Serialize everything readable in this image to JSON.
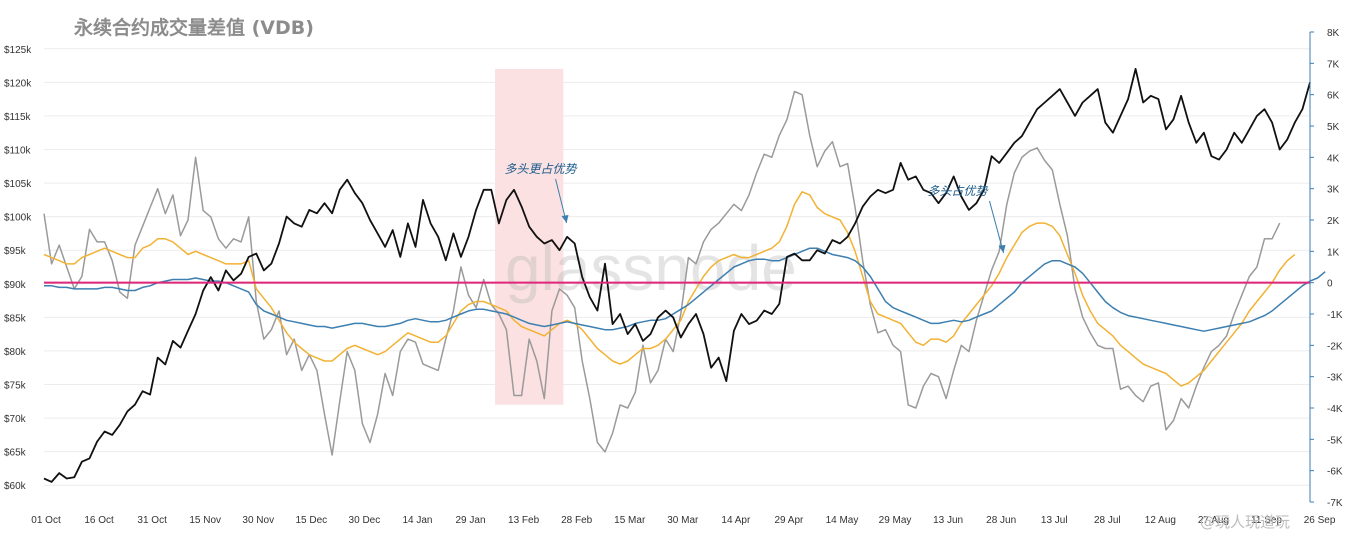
{
  "chart_data": {
    "type": "line",
    "title": "永续合约成交量差值 (VDB)",
    "x_ticks": [
      "01 Oct",
      "16 Oct",
      "31 Oct",
      "15 Nov",
      "30 Nov",
      "15 Dec",
      "30 Dec",
      "14 Jan",
      "29 Jan",
      "13 Feb",
      "28 Feb",
      "15 Mar",
      "30 Mar",
      "14 Apr",
      "29 Apr",
      "14 May",
      "29 May",
      "13 Jun",
      "28 Jun",
      "13 Jul",
      "28 Jul",
      "12 Aug",
      "27 Aug",
      "11 Sep",
      "26 Sep"
    ],
    "y_left_ticks": [
      "$60k",
      "$65k",
      "$70k",
      "$75k",
      "$80k",
      "$85k",
      "$90k",
      "$95k",
      "$100k",
      "$105k",
      "$110k",
      "$115k",
      "$120k",
      "$125k"
    ],
    "y_left_range": [
      57500,
      127500
    ],
    "y_right_ticks": [
      "-7K",
      "-6K",
      "-5K",
      "-4K",
      "-3K",
      "-2K",
      "-1K",
      "0",
      "1K",
      "2K",
      "3K",
      "4K",
      "5K",
      "6K",
      "7K",
      "8K"
    ],
    "y_right_range": [
      -7000,
      8000
    ],
    "grid": true,
    "colors": {
      "price": "#111111",
      "gray": "#9a9a9a",
      "orange": "#f2b233",
      "blue": "#3c7fb0",
      "zero": "#e0267a",
      "highlight": "#fbe1e1"
    },
    "highlight": {
      "x_start": 59.5,
      "x_end": 68.5,
      "y_top": 122000,
      "y_bottom": 72000
    },
    "annotations": [
      {
        "text": "多头更占优势",
        "x": 65.5,
        "y": 3500
      },
      {
        "text": "多头占优势",
        "x": 120.5,
        "y": 2800
      }
    ],
    "watermark": "glassnode",
    "credit": "@玩人玩道玩",
    "series": [
      {
        "name": "",
        "axis": "left",
        "color": "#111111",
        "values": [
          61000,
          60500,
          61800,
          61000,
          61200,
          63500,
          64000,
          66500,
          68000,
          67500,
          69000,
          71000,
          72000,
          74000,
          73500,
          79000,
          78000,
          81500,
          80500,
          83000,
          85500,
          89000,
          91000,
          89000,
          92000,
          90500,
          91500,
          94000,
          94500,
          92000,
          93000,
          96000,
          100000,
          99000,
          98500,
          101000,
          100500,
          102000,
          100500,
          104000,
          105500,
          103500,
          102000,
          99500,
          97500,
          95500,
          98000,
          94000,
          99000,
          95500,
          102500,
          99000,
          97000,
          93500,
          97500,
          94000,
          97000,
          101000,
          104000,
          104000,
          99000,
          102500,
          104000,
          101500,
          98500,
          97000,
          96000,
          96500,
          95000,
          97000,
          96000,
          91000,
          88000,
          86000,
          93000,
          84000,
          85500,
          82500,
          84000,
          81500,
          82500,
          85000,
          86000,
          85000,
          82000,
          84000,
          85500,
          82500,
          77500,
          79000,
          75500,
          83000,
          85500,
          84000,
          84500,
          86000,
          85500,
          87000,
          94000,
          94500,
          93500,
          93500,
          95000,
          94500,
          96500,
          96000,
          97000,
          99000,
          101500,
          103000,
          104000,
          103500,
          104000,
          108000,
          105500,
          106000,
          104000,
          103500,
          102000,
          103500,
          106000,
          103000,
          101000,
          102000,
          104000,
          109000,
          108000,
          109500,
          111000,
          112000,
          114000,
          116000,
          117000,
          118000,
          119000,
          117000,
          115000,
          117000,
          118000,
          119000,
          114000,
          112500,
          115000,
          117500,
          122000,
          117000,
          118000,
          117500,
          113000,
          114500,
          118000,
          114000,
          111000,
          112500,
          109000,
          108500,
          110000,
          112500,
          111000,
          113000,
          115000,
          116000,
          114000,
          110000,
          111500,
          114000,
          116000,
          120000
        ]
      },
      {
        "name": "",
        "axis": "right",
        "color": "#9a9a9a",
        "values": [
          2200,
          600,
          1200,
          500,
          -200,
          200,
          1700,
          1300,
          1300,
          700,
          -300,
          -500,
          1200,
          1800,
          2400,
          3000,
          2200,
          2800,
          1500,
          2000,
          4000,
          2300,
          2100,
          1400,
          1100,
          1400,
          1300,
          2100,
          -600,
          -1800,
          -1500,
          -900,
          -2300,
          -1800,
          -2800,
          -2300,
          -2800,
          -4200,
          -5500,
          -3800,
          -2200,
          -2800,
          -4500,
          -5100,
          -4200,
          -2900,
          -3600,
          -2200,
          -1800,
          -1900,
          -2600,
          -2700,
          -2800,
          -1800,
          -900,
          500,
          -400,
          -800,
          100,
          -700,
          -1000,
          -1500,
          -3600,
          -3600,
          -1800,
          -2500,
          -3700,
          -900,
          -200,
          -400,
          -800,
          -2500,
          -3700,
          -5100,
          -5400,
          -4800,
          -3900,
          -4000,
          -3500,
          -2000,
          -3200,
          -2800,
          -1800,
          -2200,
          -1000,
          800,
          600,
          1300,
          1700,
          1900,
          2200,
          2500,
          2300,
          2800,
          3500,
          4100,
          4000,
          4700,
          5200,
          6100,
          6000,
          4700,
          3700,
          4200,
          4500,
          3700,
          3800,
          2400,
          700,
          -700,
          -1600,
          -1500,
          -2000,
          -2200,
          -3900,
          -4000,
          -3300,
          -2900,
          -3000,
          -3700,
          -2800,
          -2000,
          -2200,
          -1200,
          -400,
          400,
          1000,
          2500,
          3500,
          4000,
          4200,
          4300,
          3900,
          3600,
          2500,
          1500,
          -200,
          -1100,
          -1600,
          -2000,
          -2100,
          -2100,
          -3400,
          -3300,
          -3600,
          -3800,
          -3300,
          -3200,
          -4700,
          -4400,
          -3700,
          -4000,
          -3300,
          -2700,
          -2200,
          -2000,
          -1700,
          -1000,
          -400,
          200,
          500,
          1400,
          1400,
          1900
        ]
      },
      {
        "name": "",
        "axis": "right",
        "color": "#f2b233",
        "values": [
          900,
          800,
          700,
          600,
          600,
          800,
          900,
          1000,
          1100,
          1000,
          900,
          800,
          800,
          1100,
          1200,
          1400,
          1400,
          1300,
          1100,
          900,
          1000,
          900,
          800,
          700,
          600,
          600,
          600,
          700,
          -200,
          -500,
          -800,
          -1200,
          -1600,
          -1900,
          -2100,
          -2300,
          -2400,
          -2500,
          -2500,
          -2300,
          -2100,
          -2000,
          -2100,
          -2200,
          -2300,
          -2200,
          -2000,
          -1800,
          -1600,
          -1700,
          -1800,
          -1900,
          -1900,
          -1700,
          -1300,
          -900,
          -700,
          -600,
          -600,
          -700,
          -800,
          -900,
          -1200,
          -1400,
          -1500,
          -1600,
          -1700,
          -1500,
          -1300,
          -1200,
          -1300,
          -1500,
          -1800,
          -2100,
          -2300,
          -2500,
          -2600,
          -2500,
          -2300,
          -2100,
          -2100,
          -2000,
          -1800,
          -1500,
          -1200,
          -600,
          -200,
          200,
          500,
          700,
          800,
          900,
          800,
          800,
          900,
          1000,
          1100,
          1300,
          1800,
          2500,
          2900,
          2800,
          2400,
          2200,
          2100,
          2000,
          1600,
          1000,
          200,
          -600,
          -1000,
          -1100,
          -1200,
          -1300,
          -1600,
          -1900,
          -2000,
          -1800,
          -1800,
          -1900,
          -1700,
          -1300,
          -1000,
          -700,
          -400,
          -100,
          300,
          800,
          1200,
          1600,
          1800,
          1900,
          1900,
          1800,
          1500,
          900,
          300,
          -400,
          -900,
          -1300,
          -1500,
          -1700,
          -2000,
          -2200,
          -2400,
          -2600,
          -2700,
          -2800,
          -2900,
          -3100,
          -3300,
          -3200,
          -3000,
          -2800,
          -2500,
          -2200,
          -1900,
          -1600,
          -1300,
          -900,
          -600,
          -300,
          0,
          400,
          700,
          900
        ]
      },
      {
        "name": "",
        "axis": "right",
        "color": "#3c7fb0",
        "values": [
          -100,
          -100,
          -150,
          -150,
          -200,
          -200,
          -200,
          -200,
          -150,
          -150,
          -200,
          -250,
          -250,
          -150,
          -100,
          0,
          50,
          100,
          100,
          100,
          150,
          100,
          50,
          50,
          0,
          -100,
          -200,
          -300,
          -700,
          -900,
          -1000,
          -1100,
          -1200,
          -1250,
          -1300,
          -1350,
          -1400,
          -1400,
          -1450,
          -1400,
          -1350,
          -1300,
          -1300,
          -1350,
          -1400,
          -1400,
          -1350,
          -1300,
          -1200,
          -1150,
          -1200,
          -1250,
          -1250,
          -1200,
          -1100,
          -1000,
          -900,
          -850,
          -850,
          -900,
          -950,
          -1000,
          -1100,
          -1200,
          -1300,
          -1350,
          -1400,
          -1350,
          -1300,
          -1250,
          -1300,
          -1350,
          -1400,
          -1450,
          -1500,
          -1500,
          -1450,
          -1400,
          -1300,
          -1250,
          -1200,
          -1200,
          -1150,
          -1000,
          -850,
          -700,
          -500,
          -300,
          -100,
          100,
          300,
          500,
          600,
          700,
          750,
          750,
          700,
          700,
          800,
          900,
          1000,
          1100,
          1100,
          1000,
          900,
          850,
          800,
          700,
          500,
          200,
          -200,
          -600,
          -800,
          -900,
          -1000,
          -1100,
          -1200,
          -1300,
          -1300,
          -1250,
          -1200,
          -1250,
          -1200,
          -1100,
          -1000,
          -900,
          -700,
          -500,
          -300,
          0,
          200,
          400,
          600,
          700,
          700,
          600,
          500,
          300,
          0,
          -300,
          -600,
          -800,
          -950,
          -1050,
          -1100,
          -1150,
          -1200,
          -1250,
          -1300,
          -1350,
          -1400,
          -1450,
          -1500,
          -1550,
          -1500,
          -1450,
          -1400,
          -1350,
          -1300,
          -1250,
          -1150,
          -1050,
          -900,
          -700,
          -500,
          -300,
          -100,
          50,
          150,
          350
        ]
      }
    ]
  }
}
